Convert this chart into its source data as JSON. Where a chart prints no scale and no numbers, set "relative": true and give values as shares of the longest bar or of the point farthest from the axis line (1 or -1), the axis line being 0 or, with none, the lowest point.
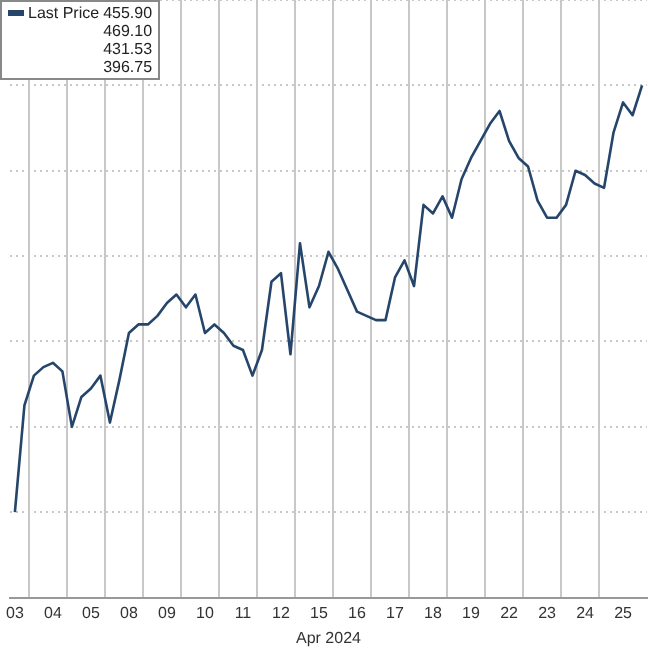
{
  "chart_data": {
    "type": "line",
    "relative": true,
    "xlabel": "Apr 2024",
    "legend": "top left",
    "grid": true,
    "marker": "none",
    "line_style": "solid",
    "annotations": [
      "455.90",
      "469.10",
      "431.53",
      "396.75"
    ],
    "categories": [
      "03",
      null,
      null,
      null,
      "04",
      null,
      null,
      null,
      "05",
      null,
      null,
      null,
      "08",
      null,
      null,
      null,
      "09",
      null,
      null,
      null,
      "10",
      null,
      null,
      null,
      "11",
      null,
      null,
      null,
      "12",
      null,
      null,
      null,
      "15",
      null,
      null,
      null,
      "16",
      null,
      null,
      null,
      "17",
      null,
      null,
      null,
      "18",
      null,
      null,
      null,
      "19",
      null,
      null,
      null,
      "22",
      null,
      null,
      null,
      "23",
      null,
      null,
      null,
      "24",
      null,
      null,
      null,
      "25",
      null,
      null
    ],
    "series": [
      {
        "name": "Last Price",
        "color": "#25456b",
        "values": [
          0.0,
          0.25,
          0.32,
          0.34,
          0.35,
          0.33,
          0.2,
          0.27,
          0.29,
          0.32,
          0.21,
          0.31,
          0.42,
          0.44,
          0.44,
          0.46,
          0.49,
          0.51,
          0.48,
          0.51,
          0.42,
          0.44,
          0.42,
          0.39,
          0.38,
          0.32,
          0.38,
          0.54,
          0.56,
          0.37,
          0.63,
          0.48,
          0.53,
          0.61,
          0.57,
          0.52,
          0.47,
          0.46,
          0.45,
          0.45,
          0.55,
          0.59,
          0.53,
          0.72,
          0.7,
          0.74,
          0.69,
          0.78,
          0.83,
          0.87,
          0.91,
          0.94,
          0.87,
          0.83,
          0.81,
          0.73,
          0.69,
          0.69,
          0.72,
          0.8,
          0.79,
          0.77,
          0.76,
          0.89,
          0.96,
          0.93,
          1.0
        ]
      }
    ]
  }
}
